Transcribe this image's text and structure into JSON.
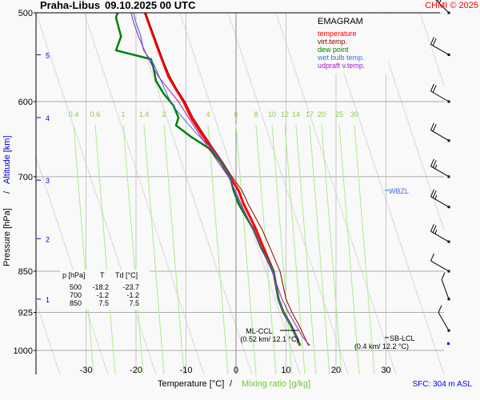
{
  "header": {
    "station": "Praha-Libus",
    "datetime": "09.10.2025 00 UTC",
    "copyright": "CHMI © 2025"
  },
  "legend": {
    "title": "EMAGRAM",
    "items": [
      {
        "label": "temperature",
        "color": "#ff0000"
      },
      {
        "label": "virt.temp.",
        "color": "#8b0000"
      },
      {
        "label": "dew point",
        "color": "#008000"
      },
      {
        "label": "wet bulb temp.",
        "color": "#3a6fe0"
      },
      {
        "label": "udpraft v.temp.",
        "color": "#a020c0"
      }
    ]
  },
  "table": {
    "headers": [
      "p [hPa]",
      "T",
      "Td [°C]"
    ],
    "rows": [
      [
        "500",
        "-18.2",
        "-23.7"
      ],
      [
        "700",
        "-1.2",
        "-1.2"
      ],
      [
        "850",
        "7.5",
        "7.5"
      ]
    ]
  },
  "annotations": {
    "wbzl": "WBZL",
    "ml_ccl_title": "ML-CCL",
    "ml_ccl_value": "(0.52 km/ 12.1 °C)",
    "sb_lcl_title": "SB-LCL",
    "sb_lcl_value": "(0.4 km/ 12.2 °C)",
    "sfc": "SFC: 304 m ASL"
  },
  "chart_data": {
    "type": "line",
    "title": "Praha-Libus 09.10.2025 00 UTC",
    "subtitle": "EMAGRAM",
    "xlabel": "Temperature [°C]",
    "xlabel2": "Mixing ratio [g/kg]",
    "ylabel": "Pressure [hPa]",
    "ylabel2": "Altitude [km]",
    "xlim": [
      -40,
      41
    ],
    "ylim": [
      1050,
      500
    ],
    "grid": true,
    "x_ticks": [
      -30,
      -20,
      -10,
      0,
      10,
      20,
      30
    ],
    "y_ticks": [
      500,
      600,
      700,
      850,
      925,
      1000
    ],
    "altitude_ticks": [
      {
        "km": 1,
        "p": 900
      },
      {
        "km": 2,
        "p": 795
      },
      {
        "km": 3,
        "p": 705
      },
      {
        "km": 4,
        "p": 620
      },
      {
        "km": 5,
        "p": 545
      }
    ],
    "mixing_ratio_labels": [
      "0.4",
      "0.6",
      "1",
      "1.4",
      "2",
      "4",
      "6",
      "8",
      "10",
      "12",
      "14",
      "17",
      "20",
      "25",
      "30"
    ],
    "series": [
      {
        "name": "temperature",
        "color": "#ff0000",
        "points": [
          [
            12.8,
            990
          ],
          [
            12.2,
            975
          ],
          [
            11.0,
            950
          ],
          [
            9.5,
            925
          ],
          [
            8.5,
            900
          ],
          [
            7.5,
            850
          ],
          [
            5.5,
            810
          ],
          [
            4.0,
            780
          ],
          [
            2.8,
            760
          ],
          [
            1.5,
            740
          ],
          [
            0.5,
            720
          ],
          [
            -1.2,
            700
          ],
          [
            -3.0,
            680
          ],
          [
            -5.0,
            660
          ],
          [
            -7.0,
            640
          ],
          [
            -9.0,
            620
          ],
          [
            -10.5,
            600
          ],
          [
            -12.0,
            585
          ],
          [
            -13.5,
            570
          ],
          [
            -14.5,
            555
          ],
          [
            -15.5,
            540
          ],
          [
            -16.5,
            525
          ],
          [
            -17.5,
            510
          ],
          [
            -18.2,
            500
          ]
        ]
      },
      {
        "name": "virt.temp.",
        "color": "#8b0000",
        "points": [
          [
            14.5,
            990
          ],
          [
            13.8,
            975
          ],
          [
            12.6,
            950
          ],
          [
            11.2,
            925
          ],
          [
            10.0,
            900
          ],
          [
            8.8,
            850
          ],
          [
            6.8,
            810
          ],
          [
            5.2,
            780
          ],
          [
            3.8,
            760
          ],
          [
            2.4,
            740
          ],
          [
            1.2,
            720
          ],
          [
            -0.8,
            700
          ],
          [
            -2.6,
            680
          ],
          [
            -4.6,
            660
          ],
          [
            -6.6,
            640
          ],
          [
            -8.6,
            620
          ],
          [
            -10.2,
            600
          ],
          [
            -11.8,
            585
          ],
          [
            -13.2,
            570
          ],
          [
            -14.3,
            555
          ],
          [
            -15.3,
            540
          ],
          [
            -16.3,
            525
          ],
          [
            -17.4,
            510
          ],
          [
            -18.0,
            500
          ]
        ]
      },
      {
        "name": "dew point",
        "color": "#008000",
        "points": [
          [
            12.8,
            990
          ],
          [
            12.2,
            975
          ],
          [
            11.0,
            950
          ],
          [
            9.5,
            925
          ],
          [
            8.5,
            900
          ],
          [
            7.5,
            850
          ],
          [
            5.0,
            810
          ],
          [
            3.5,
            780
          ],
          [
            2.0,
            760
          ],
          [
            0.5,
            740
          ],
          [
            -0.5,
            720
          ],
          [
            -1.2,
            700
          ],
          [
            -3.0,
            680
          ],
          [
            -4.2,
            670
          ],
          [
            -5.5,
            660
          ],
          [
            -9.0,
            645
          ],
          [
            -12.0,
            630
          ],
          [
            -11.5,
            620
          ],
          [
            -12.5,
            605
          ],
          [
            -14.5,
            590
          ],
          [
            -16.0,
            575
          ],
          [
            -16.5,
            560
          ],
          [
            -17.0,
            550
          ],
          [
            -24.0,
            540
          ],
          [
            -23.0,
            525
          ],
          [
            -24.0,
            505
          ],
          [
            -23.7,
            500
          ]
        ]
      },
      {
        "name": "wet bulb temp.",
        "color": "#3a6fe0",
        "points": [
          [
            12.8,
            990
          ],
          [
            12.2,
            975
          ],
          [
            11.0,
            950
          ],
          [
            9.5,
            925
          ],
          [
            8.5,
            900
          ],
          [
            7.5,
            850
          ],
          [
            5.0,
            810
          ],
          [
            3.5,
            780
          ],
          [
            2.2,
            760
          ],
          [
            0.8,
            740
          ],
          [
            -0.3,
            720
          ],
          [
            -1.2,
            700
          ],
          [
            -3.0,
            680
          ],
          [
            -5.0,
            660
          ],
          [
            -8.0,
            640
          ],
          [
            -10.0,
            625
          ],
          [
            -12.0,
            610
          ],
          [
            -13.5,
            595
          ],
          [
            -15.0,
            575
          ],
          [
            -16.5,
            555
          ],
          [
            -18.5,
            540
          ],
          [
            -19.0,
            525
          ],
          [
            -20.0,
            510
          ],
          [
            -20.5,
            500
          ]
        ]
      },
      {
        "name": "udpraft v.temp.",
        "color": "#a020c0",
        "points": [
          [
            14.8,
            990
          ],
          [
            13.5,
            975
          ],
          [
            12.0,
            950
          ],
          [
            10.5,
            925
          ],
          [
            9.2,
            900
          ],
          [
            7.2,
            850
          ],
          [
            5.0,
            810
          ],
          [
            3.5,
            780
          ],
          [
            2.2,
            760
          ],
          [
            1.0,
            740
          ],
          [
            -0.2,
            720
          ],
          [
            -1.5,
            700
          ],
          [
            -3.5,
            680
          ],
          [
            -5.5,
            660
          ],
          [
            -7.5,
            640
          ],
          [
            -9.5,
            620
          ],
          [
            -11.5,
            600
          ],
          [
            -13.5,
            585
          ],
          [
            -15.5,
            570
          ],
          [
            -17.0,
            555
          ],
          [
            -18.3,
            540
          ],
          [
            -19.5,
            525
          ],
          [
            -20.5,
            510
          ],
          [
            -21.0,
            500
          ]
        ]
      }
    ],
    "wind_barbs": [
      {
        "p": 500,
        "dir": 315,
        "speed_kt": 25
      },
      {
        "p": 545,
        "dir": 300,
        "speed_kt": 20
      },
      {
        "p": 600,
        "dir": 300,
        "speed_kt": 20
      },
      {
        "p": 650,
        "dir": 300,
        "speed_kt": 20
      },
      {
        "p": 700,
        "dir": 300,
        "speed_kt": 15
      },
      {
        "p": 745,
        "dir": 300,
        "speed_kt": 15
      },
      {
        "p": 800,
        "dir": 300,
        "speed_kt": 15
      },
      {
        "p": 850,
        "dir": 300,
        "speed_kt": 10
      },
      {
        "p": 900,
        "dir": 340,
        "speed_kt": 10
      },
      {
        "p": 960,
        "dir": 330,
        "speed_kt": 10
      }
    ]
  }
}
